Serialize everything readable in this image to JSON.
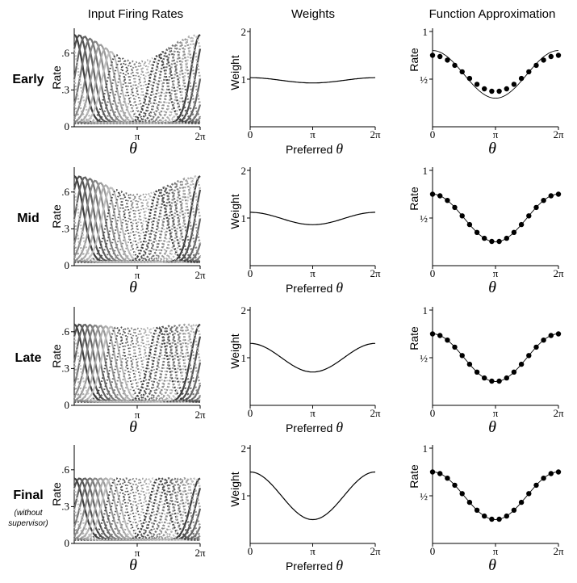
{
  "column_titles": [
    "Input Firing Rates",
    "Weights",
    "Function Approximation"
  ],
  "rows": [
    {
      "label": "Early",
      "sublabel": ""
    },
    {
      "label": "Mid",
      "sublabel": ""
    },
    {
      "label": "Late",
      "sublabel": ""
    },
    {
      "label": "Final",
      "sublabel": "(without\nsupervisor)"
    }
  ],
  "chart_data": [
    {
      "panel": "input-firing-rates",
      "type": "line",
      "ylabel": "Rate",
      "xlabel": "θ",
      "x_range": [
        "0",
        "2π"
      ],
      "x_ticks": [
        "π",
        "2π"
      ],
      "y_ticks": [
        "0",
        ".3",
        ".6"
      ],
      "ylim": [
        0,
        0.75
      ],
      "n_tuning_curves": 24,
      "styles": [
        "solid-dark",
        "solid-light",
        "dotted-dark"
      ],
      "rows": [
        {
          "row": "Early",
          "preferred_center": "π",
          "peak_rates_by_preferred_theta": {
            "0": 0.72,
            "π/2": 0.62,
            "π": 0.5,
            "3π/2": 0.62,
            "2π": 0.72
          }
        },
        {
          "row": "Mid",
          "peak_rates_by_preferred_theta": {
            "0": 0.7,
            "π/2": 0.62,
            "π": 0.55,
            "3π/2": 0.62,
            "2π": 0.7
          }
        },
        {
          "row": "Late",
          "peak_rates_by_preferred_theta": {
            "0": 0.63,
            "π/2": 0.63,
            "π": 0.6,
            "3π/2": 0.63,
            "2π": 0.63
          }
        },
        {
          "row": "Final",
          "peak_rates_by_preferred_theta": {
            "0": 0.5,
            "π/2": 0.5,
            "π": 0.5,
            "3π/2": 0.5,
            "2π": 0.5
          }
        }
      ]
    },
    {
      "panel": "weights",
      "type": "line",
      "ylabel": "Weight",
      "xlabel": "Preferred θ",
      "x_ticks": [
        "0",
        "π",
        "2π"
      ],
      "y_ticks": [
        "0",
        "1",
        "2"
      ],
      "ylim": [
        0,
        2
      ],
      "series": [
        {
          "row": "Early",
          "x": [
            "0",
            "π/2",
            "π",
            "3π/2",
            "2π"
          ],
          "values": [
            1.03,
            0.97,
            0.92,
            0.97,
            1.03
          ]
        },
        {
          "row": "Mid",
          "x": [
            "0",
            "π/2",
            "π",
            "3π/2",
            "2π"
          ],
          "values": [
            1.12,
            0.98,
            0.86,
            0.98,
            1.12
          ]
        },
        {
          "row": "Late",
          "x": [
            "0",
            "π/2",
            "π",
            "3π/2",
            "2π"
          ],
          "values": [
            1.3,
            1.0,
            0.7,
            1.0,
            1.3
          ]
        },
        {
          "row": "Final",
          "x": [
            "0",
            "π/2",
            "π",
            "3π/2",
            "2π"
          ],
          "values": [
            1.5,
            1.0,
            0.5,
            1.0,
            1.5
          ]
        }
      ]
    },
    {
      "panel": "function-approximation",
      "type": "line+scatter",
      "ylabel": "Rate",
      "xlabel": "θ",
      "x_ticks": [
        "0",
        "π",
        "2π"
      ],
      "y_ticks": [
        "½",
        "1"
      ],
      "ylim": [
        0,
        1
      ],
      "n_points": 18,
      "series": [
        {
          "row": "Early",
          "target": {
            "x": [
              "0",
              "π",
              "2π"
            ],
            "values": [
              0.8,
              0.3,
              0.8
            ]
          },
          "approximation": {
            "x": [
              "0",
              "π",
              "2π"
            ],
            "values": [
              0.75,
              0.37,
              0.75
            ]
          }
        },
        {
          "row": "Mid",
          "target": {
            "x": [
              "0",
              "π",
              "2π"
            ],
            "values": [
              0.75,
              0.25,
              0.75
            ]
          },
          "approximation": {
            "x": [
              "0",
              "π",
              "2π"
            ],
            "values": [
              0.75,
              0.25,
              0.75
            ]
          }
        },
        {
          "row": "Late",
          "target": {
            "x": [
              "0",
              "π",
              "2π"
            ],
            "values": [
              0.75,
              0.25,
              0.75
            ]
          },
          "approximation": {
            "x": [
              "0",
              "π",
              "2π"
            ],
            "values": [
              0.75,
              0.25,
              0.75
            ]
          }
        },
        {
          "row": "Final",
          "target": {
            "x": [
              "0",
              "π",
              "2π"
            ],
            "values": [
              0.75,
              0.25,
              0.75
            ]
          },
          "approximation": {
            "x": [
              "0",
              "π",
              "2π"
            ],
            "values": [
              0.75,
              0.25,
              0.75
            ]
          }
        }
      ]
    }
  ]
}
